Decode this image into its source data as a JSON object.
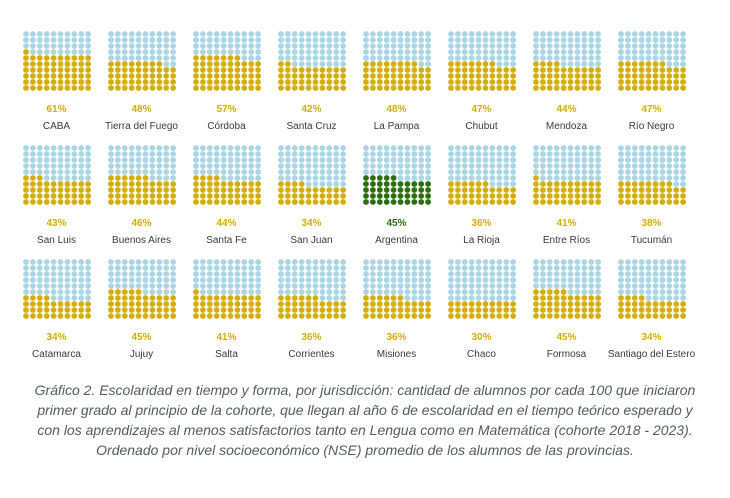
{
  "colors": {
    "filled": "#d4ae08",
    "empty": "#a9d5e4",
    "highlight_filled": "#2a6e0e",
    "highlight_empty": "#a9d5e4"
  },
  "caption": "Gráfico 2. Escolaridad en tiempo y forma, por jurisdicción: cantidad de alumnos por cada 100 que iniciaron primer grado al principio de la cohorte, que llegan al año 6 de escolaridad en el tiempo teórico esperado y con los aprendizajes al menos satisfactorios tanto en Lengua como en Matemática (cohorte 2018 - 2023). Ordenado por nivel socioeconómico (NSE) promedio de los alumnos de las provincias.",
  "chart_data": {
    "type": "waffle",
    "units_per_chart": 100,
    "grid": "10x10",
    "highlight": "Argentina",
    "jurisdictions": [
      {
        "name": "CABA",
        "pct_label": "61%",
        "value": 61
      },
      {
        "name": "Tierra del Fuego",
        "pct_label": "48%",
        "value": 48
      },
      {
        "name": "Córdoba",
        "pct_label": "57%",
        "value": 57
      },
      {
        "name": "Santa Cruz",
        "pct_label": "42%",
        "value": 42
      },
      {
        "name": "La Pampa",
        "pct_label": "48%",
        "value": 48
      },
      {
        "name": "Chubut",
        "pct_label": "47%",
        "value": 47
      },
      {
        "name": "Mendoza",
        "pct_label": "44%",
        "value": 44
      },
      {
        "name": "Río Negro",
        "pct_label": "47%",
        "value": 47
      },
      {
        "name": "San Luis",
        "pct_label": "43%",
        "value": 43
      },
      {
        "name": "Buenos Aires",
        "pct_label": "46%",
        "value": 46
      },
      {
        "name": "Santa Fe",
        "pct_label": "44%",
        "value": 44
      },
      {
        "name": "San Juan",
        "pct_label": "34%",
        "value": 34
      },
      {
        "name": "Argentina",
        "pct_label": "45%",
        "value": 45
      },
      {
        "name": "La Rioja",
        "pct_label": "36%",
        "value": 36
      },
      {
        "name": "Entre Ríos",
        "pct_label": "41%",
        "value": 41
      },
      {
        "name": "Tucumán",
        "pct_label": "38%",
        "value": 38
      },
      {
        "name": "Catamarca",
        "pct_label": "34%",
        "value": 34
      },
      {
        "name": "Jujuy",
        "pct_label": "45%",
        "value": 45
      },
      {
        "name": "Salta",
        "pct_label": "41%",
        "value": 41
      },
      {
        "name": "Corrientes",
        "pct_label": "36%",
        "value": 36
      },
      {
        "name": "Misiones",
        "pct_label": "36%",
        "value": 36
      },
      {
        "name": "Chaco",
        "pct_label": "30%",
        "value": 30
      },
      {
        "name": "Formosa",
        "pct_label": "45%",
        "value": 45
      },
      {
        "name": "Santiago del Estero",
        "pct_label": "34%",
        "value": 34
      }
    ]
  }
}
